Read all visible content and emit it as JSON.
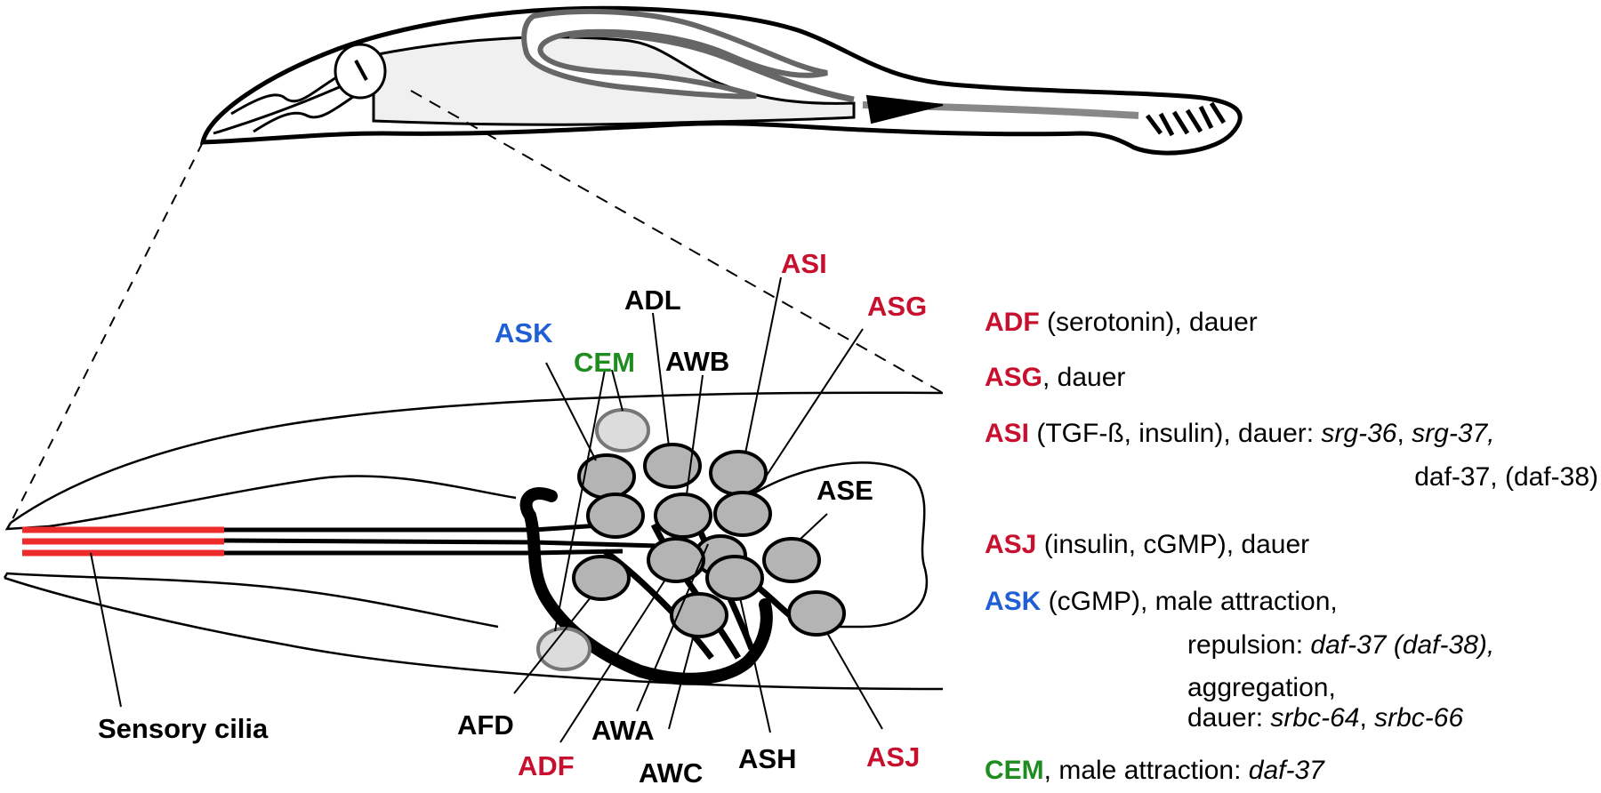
{
  "colors": {
    "red": "#c8102e",
    "blue": "#1f5fd6",
    "green": "#1e8c1e",
    "black": "#000000",
    "cell_fill": "#b4b4b4",
    "cem_fill": "#dcdcdc",
    "cilia": "#ee2b2b"
  },
  "labels": {
    "asi": "ASI",
    "asg": "ASG",
    "adl": "ADL",
    "ask": "ASK",
    "cem": "CEM",
    "awb": "AWB",
    "ase": "ASE",
    "afd": "AFD",
    "awa": "AWA",
    "adf": "ADF",
    "awc": "AWC",
    "ash": "ASH",
    "asj": "ASJ",
    "sensory_cilia": "Sensory cilia"
  },
  "legend": {
    "adf": {
      "name": "ADF",
      "t1": " (serotonin), dauer"
    },
    "asg": {
      "name": "ASG",
      "t1": ", dauer"
    },
    "asi": {
      "name": "ASI",
      "t1": " (TGF-ß, insulin), dauer: ",
      "g1": "srg-36",
      "c1": ", ",
      "g2": "srg-37,",
      "line2": "daf-37, (daf-38)"
    },
    "asj": {
      "name": "ASJ",
      "t1": " (insulin, cGMP), dauer"
    },
    "ask": {
      "name": "ASK",
      "t1": " (cGMP), male attraction,",
      "l2a": "repulsion: ",
      "l2b": "daf-37 (daf-38),",
      "l3": "aggregation,",
      "l4a": "dauer: ",
      "l4b": "srbc-64",
      "l4c": ", ",
      "l4d": "srbc-66"
    },
    "cem": {
      "name": "CEM",
      "t1": ", male attraction: ",
      "g1": "daf-37"
    }
  }
}
